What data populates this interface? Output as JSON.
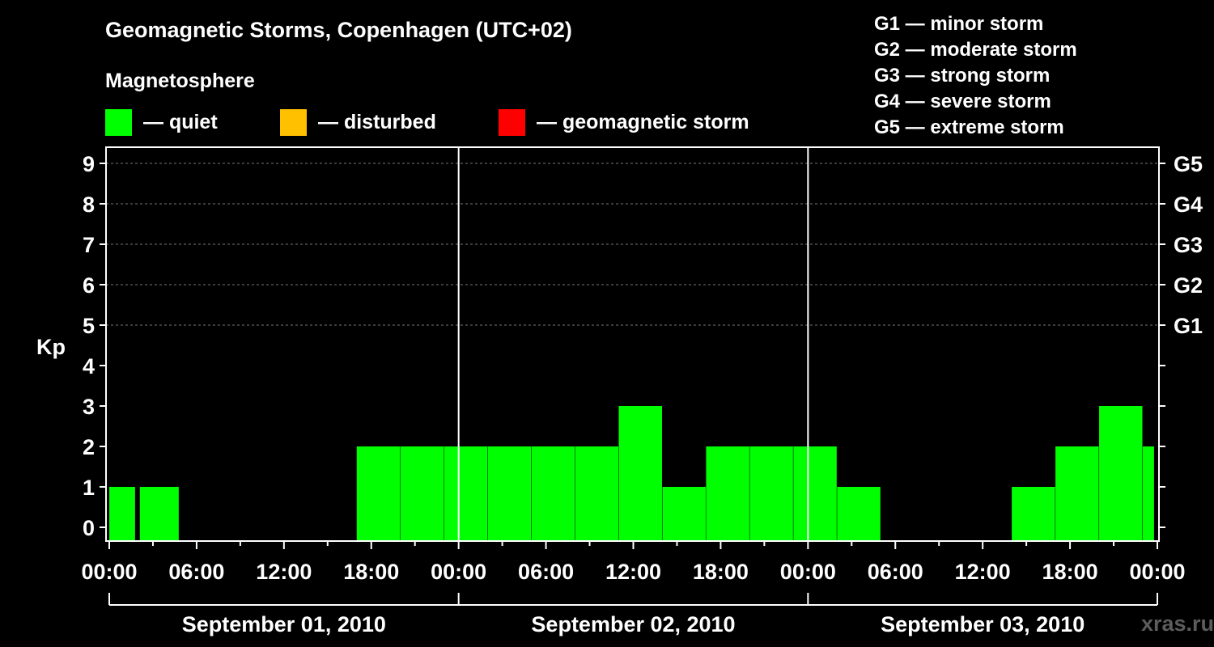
{
  "header": {
    "title": "Geomagnetic Storms, Copenhagen (UTC+02)",
    "subtitle": "Magnetosphere"
  },
  "legend": [
    {
      "label": "— quiet",
      "color": "#00ff00"
    },
    {
      "label": "— disturbed",
      "color": "#ffc000"
    },
    {
      "label": "— geomagnetic storm",
      "color": "#ff0000"
    }
  ],
  "g_scale": [
    "G1 — minor storm",
    "G2 — moderate storm",
    "G3 — strong storm",
    "G4 — severe storm",
    "G5 — extreme storm"
  ],
  "watermark": "xras.ru",
  "chart_data": {
    "type": "bar",
    "title": "Geomagnetic Storms, Copenhagen (UTC+02)",
    "ylabel": "Kp",
    "ylim": [
      0,
      9
    ],
    "yticks": [
      "0",
      "1",
      "2",
      "3",
      "4",
      "5",
      "6",
      "7",
      "8",
      "9"
    ],
    "right_axis": [
      {
        "kp": 5,
        "label": "G1"
      },
      {
        "kp": 6,
        "label": "G2"
      },
      {
        "kp": 7,
        "label": "G3"
      },
      {
        "kp": 8,
        "label": "G4"
      },
      {
        "kp": 9,
        "label": "G5"
      }
    ],
    "xlim_hours": [
      0,
      72
    ],
    "xticks": [
      "00:00",
      "06:00",
      "12:00",
      "18:00",
      "00:00",
      "06:00",
      "12:00",
      "18:00",
      "00:00",
      "06:00",
      "12:00",
      "18:00",
      "00:00"
    ],
    "days": [
      "September 01, 2010",
      "September 02, 2010",
      "September 03, 2010"
    ],
    "bar_color": "#00ff00",
    "bars": [
      {
        "start": 0,
        "end": 1.8,
        "kp": 1
      },
      {
        "start": 2.1,
        "end": 4.8,
        "kp": 1
      },
      {
        "start": 17,
        "end": 20,
        "kp": 2
      },
      {
        "start": 20,
        "end": 23,
        "kp": 2
      },
      {
        "start": 23,
        "end": 26,
        "kp": 2
      },
      {
        "start": 26,
        "end": 29,
        "kp": 2
      },
      {
        "start": 29,
        "end": 32,
        "kp": 2
      },
      {
        "start": 32,
        "end": 35,
        "kp": 2
      },
      {
        "start": 35,
        "end": 38,
        "kp": 3
      },
      {
        "start": 38,
        "end": 41,
        "kp": 1
      },
      {
        "start": 41,
        "end": 44,
        "kp": 2
      },
      {
        "start": 44,
        "end": 47,
        "kp": 2
      },
      {
        "start": 47,
        "end": 50,
        "kp": 2
      },
      {
        "start": 50,
        "end": 53,
        "kp": 1
      },
      {
        "start": 62,
        "end": 65,
        "kp": 1
      },
      {
        "start": 65,
        "end": 68,
        "kp": 2
      },
      {
        "start": 68,
        "end": 71,
        "kp": 3
      },
      {
        "start": 71,
        "end": 71.8,
        "kp": 2
      }
    ]
  }
}
